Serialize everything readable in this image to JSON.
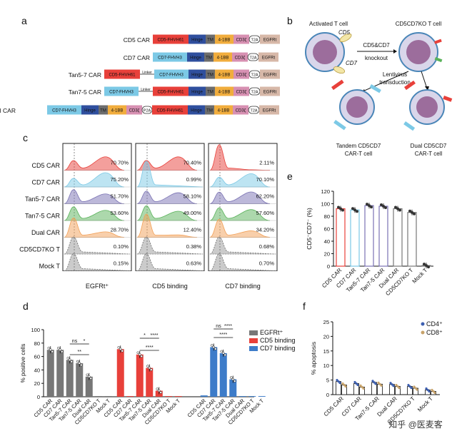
{
  "panels": {
    "a": "a",
    "b": "b",
    "c": "c",
    "d": "d",
    "e": "e",
    "f": "f"
  },
  "colors": {
    "cd5": "#e8403a",
    "cd7": "#7cc9e6",
    "hinge": "#2f4f9e",
    "tm": "#6d6d6d",
    "bb41": "#f1ad3d",
    "cd3z": "#d790b2",
    "egfrt": "#d7b8a8",
    "tan57": "#7a72b3",
    "tan75": "#59b25a",
    "dual": "#f2a057",
    "gray": "#777777",
    "ctrl": "#6b6b6b"
  },
  "panel_a": {
    "constructs": [
      {
        "name": "CD5 CAR",
        "segments": [
          "CD5-FHVH61",
          "Hinge",
          "TM",
          "4-1BB",
          "CD3ζ",
          "T2A",
          "EGFRt"
        ]
      },
      {
        "name": "CD7 CAR",
        "segments": [
          "CD7-FHVH3",
          "Hinge",
          "TM",
          "4-1BB",
          "CD3ζ",
          "T2A",
          "EGFRt"
        ]
      },
      {
        "name": "Tan5-7 CAR",
        "segments": [
          "CD5-FHVH61",
          "Linker",
          "CD7-FHVH3",
          "Hinge",
          "TM",
          "4-1BB",
          "CD3ζ",
          "T2A",
          "EGFRt"
        ]
      },
      {
        "name": "Tan7-5 CAR",
        "segments": [
          "CD7-FHVH3",
          "Linker",
          "CD5-FHVH61",
          "Hinge",
          "TM",
          "4-1BB",
          "CD3ζ",
          "T2A",
          "EGFRt"
        ]
      },
      {
        "name": "Dual CAR",
        "segments": [
          "CD7-FHVH3",
          "Hinge",
          "TM",
          "4-1BB",
          "CD3ζ",
          "P2A",
          "CD5-FHVH61",
          "Hinge",
          "TM",
          "4-1BB",
          "CD3ζ",
          "T2A",
          "EGFRt"
        ]
      }
    ]
  },
  "panel_b": {
    "activated_t_cell": "Activated T cell",
    "cd5": "CD5",
    "cd7": "CD7",
    "knockout_line1": "CD5&CD7",
    "knockout_line2": "knockout",
    "ko_t_cell": "CD5CD7KO T cell",
    "lenti_line1": "Lentivirus",
    "lenti_line2": "transduction",
    "tandem_line1": "Tandem CD5CD7",
    "tandem_line2": "CAR-T cell",
    "dual_line1": "Dual CD5CD7",
    "dual_line2": "CAR-T cell"
  },
  "panel_c": {
    "rows": [
      "CD5 CAR",
      "CD7 CAR",
      "Tan5-7 CAR",
      "Tan7-5 CAR",
      "Dual CAR",
      "CD5CD7KO T",
      "Mock T"
    ],
    "columns": [
      "EGFRt⁺",
      "CD5 binding",
      "CD7 binding"
    ],
    "percentages": [
      [
        "70.70%",
        "75.20%",
        "51.70%",
        "53.60%",
        "28.70%",
        "0.10%",
        "0.15%"
      ],
      [
        "70.40%",
        "0.99%",
        "58.10%",
        "49.00%",
        "12.40%",
        "0.38%",
        "0.63%"
      ],
      [
        "2.11%",
        "70.10%",
        "62.20%",
        "57.60%",
        "34.20%",
        "0.68%",
        "0.70%"
      ]
    ]
  },
  "chart_data": [
    {
      "panel": "d",
      "type": "bar",
      "ylabel": "% positive cells",
      "ylim": [
        0,
        100
      ],
      "yticks": [
        "0",
        "20",
        "40",
        "60",
        "80",
        "100"
      ],
      "categories": [
        "CD5 CAR",
        "CD7 CAR",
        "Tan5-7 CAR",
        "Tan7-5 CAR",
        "Dual CAR",
        "CD5CD7KO T",
        "Mock T"
      ],
      "legend": [
        "EGFRt⁺",
        "CD5 binding",
        "CD7 binding"
      ],
      "series": [
        {
          "name": "EGFRt⁺",
          "values": [
            70,
            70,
            55,
            50,
            30,
            1,
            1
          ]
        },
        {
          "name": "CD5 binding",
          "values": [
            71,
            1,
            63,
            43,
            9,
            1,
            1
          ]
        },
        {
          "name": "CD7 binding",
          "values": [
            2,
            74,
            65,
            26,
            1,
            1,
            1
          ]
        }
      ],
      "corrected_series_note": "",
      "significance": [
        {
          "group": "EGFRt⁺",
          "label": "ns"
        },
        {
          "group": "EGFRt⁺",
          "label": "*"
        },
        {
          "group": "EGFRt⁺",
          "label": "**"
        },
        {
          "group": "CD5 binding",
          "label": "*"
        },
        {
          "group": "CD5 binding",
          "label": "****"
        },
        {
          "group": "CD5 binding",
          "label": "****"
        },
        {
          "group": "CD7 binding",
          "label": "ns"
        },
        {
          "group": "CD7 binding",
          "label": "****"
        },
        {
          "group": "CD7 binding",
          "label": "****"
        }
      ]
    },
    {
      "panel": "e",
      "type": "bar",
      "ylabel": "CD5⁻CD7⁻ (%)",
      "ylim": [
        0,
        120
      ],
      "yticks": [
        "0",
        "20",
        "40",
        "60",
        "80",
        "100",
        "120"
      ],
      "categories": [
        "CD5 CAR",
        "CD7 CAR",
        "Tan5-7 CAR",
        "Tan7-5 CAR",
        "Dual CAR",
        "CD5CD7KO T",
        "Mock T"
      ],
      "values": [
        92,
        90,
        97,
        96,
        92,
        86,
        1
      ]
    },
    {
      "panel": "f",
      "type": "bar",
      "ylabel": "% apoptosis",
      "ylim": [
        0,
        25
      ],
      "yticks": [
        "0",
        "5",
        "10",
        "15",
        "20",
        "25"
      ],
      "categories": [
        "CD5 CAR",
        "CD7 CAR",
        "Tan7-5 CAR",
        "Dual CAR",
        "CD5CD7KO T",
        "Mock T"
      ],
      "legend": [
        "CD4⁺",
        "CD8⁺"
      ],
      "series": [
        {
          "name": "CD4⁺",
          "values": [
            4.5,
            3.8,
            4.2,
            3.5,
            2.8,
            1.6
          ]
        },
        {
          "name": "CD8⁺",
          "values": [
            3.3,
            2.6,
            3.6,
            2.8,
            2.2,
            1.1
          ]
        }
      ]
    }
  ],
  "watermark": "知乎 @医麦客"
}
